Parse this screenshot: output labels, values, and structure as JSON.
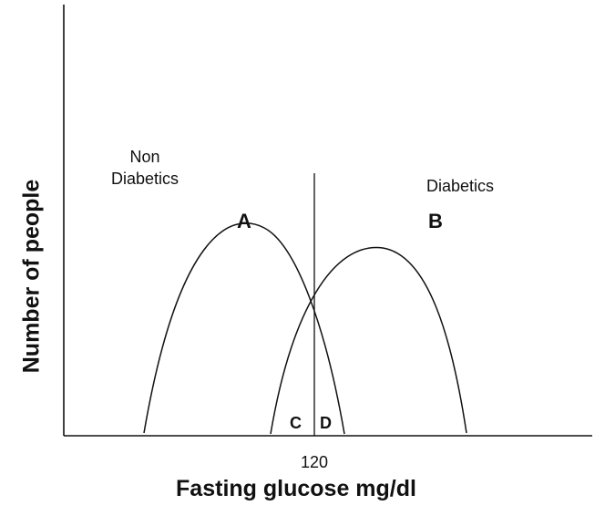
{
  "figure": {
    "y_axis_label": "Number of people",
    "x_axis_label": "Fasting glucose mg/dl",
    "cutoff_tick": "120",
    "group_left_line1": "Non",
    "group_left_line2": "Diabetics",
    "group_right": "Diabetics",
    "curve_a_letter": "A",
    "curve_b_letter": "B",
    "region_c_letter": "C",
    "region_d_letter": "D"
  },
  "colors": {
    "line": "#111111",
    "background": "#ffffff"
  }
}
